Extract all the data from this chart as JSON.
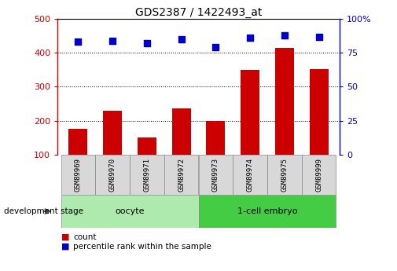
{
  "title": "GDS2387 / 1422493_at",
  "categories": [
    "GSM89969",
    "GSM89970",
    "GSM89971",
    "GSM89972",
    "GSM89973",
    "GSM89974",
    "GSM89975",
    "GSM89999"
  ],
  "counts": [
    175,
    230,
    150,
    235,
    198,
    350,
    415,
    352
  ],
  "percentiles": [
    83,
    84,
    82,
    85,
    79,
    86,
    88,
    87
  ],
  "bar_color": "#cc0000",
  "dot_color": "#0000cc",
  "ylim_left": [
    100,
    500
  ],
  "ylim_right": [
    0,
    100
  ],
  "yticks_left": [
    100,
    200,
    300,
    400,
    500
  ],
  "yticks_right": [
    0,
    25,
    50,
    75,
    100
  ],
  "yticklabels_right": [
    "0",
    "25",
    "50",
    "75",
    "100%"
  ],
  "groups": [
    {
      "label": "oocyte",
      "indices": [
        0,
        1,
        2,
        3
      ],
      "color": "#aeeaae"
    },
    {
      "label": "1-cell embryo",
      "indices": [
        4,
        5,
        6,
        7
      ],
      "color": "#44cc44"
    }
  ],
  "stage_label": "development stage",
  "legend_count_label": "count",
  "legend_percentile_label": "percentile rank within the sample"
}
